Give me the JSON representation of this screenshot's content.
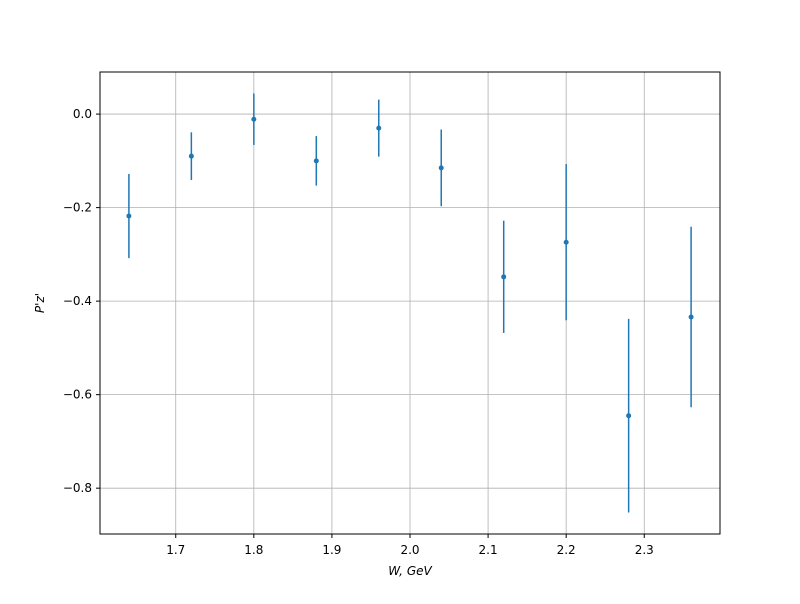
{
  "chart_data": {
    "type": "errorbar",
    "xlabel": "W, GeV",
    "ylabel": "P'z'",
    "x": [
      1.64,
      1.72,
      1.8,
      1.88,
      1.96,
      2.04,
      2.12,
      2.2,
      2.28,
      2.36
    ],
    "values": [
      -0.218,
      -0.09,
      -0.011,
      -0.1,
      -0.03,
      -0.115,
      -0.348,
      -0.274,
      -0.645,
      -0.434
    ],
    "errors": [
      0.09,
      0.051,
      0.055,
      0.053,
      0.061,
      0.082,
      0.12,
      0.167,
      0.207,
      0.193
    ],
    "color": "#1f77b4",
    "xlim": [
      1.603,
      2.397
    ],
    "ylim": [
      -0.898,
      0.09
    ],
    "xticks": [
      1.7,
      1.8,
      1.9,
      {
        "value": 2,
        "label": "2.0"
      },
      2.1,
      2.2,
      2.3
    ],
    "yticks": [
      {
        "value": 0,
        "label": "0.0"
      },
      {
        "value": -0.2,
        "label": "−0.2"
      },
      {
        "value": -0.4,
        "label": "−0.4"
      },
      {
        "value": -0.6,
        "label": "−0.6"
      },
      {
        "value": -0.8,
        "label": "−0.8"
      }
    ],
    "grid": true
  }
}
